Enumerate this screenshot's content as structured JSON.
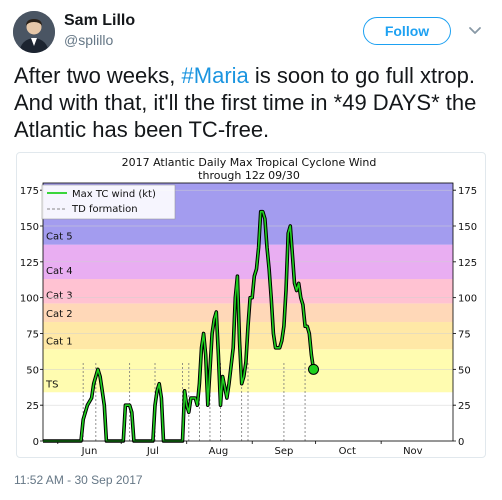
{
  "user": {
    "display_name": "Sam Lillo",
    "handle": "@splillo",
    "avatar_icon": "person-avatar-icon"
  },
  "follow_button": {
    "label": "Follow",
    "color": "#1da1f2"
  },
  "menu_icon": "chevron-down-icon",
  "tweet": {
    "text_before": "After two weeks, ",
    "hashtag": "#Maria",
    "text_after": " is soon to go full xtrop. And with that, it'll the first time in *49 DAYS* the Atlantic has been TC-free.",
    "hashtag_color": "#1b95e0"
  },
  "timestamp": "11:52 AM - 30 Sep 2017",
  "chart_data": {
    "type": "line",
    "title": "2017 Atlantic Daily Max Tropical Cyclone Wind",
    "subtitle": "through 12z 09/30",
    "ylim": [
      0,
      180
    ],
    "yticks": [
      0,
      25,
      50,
      75,
      100,
      125,
      150,
      175
    ],
    "x_start": "2017-05-25",
    "x_end": "2017-12-05",
    "xticks": [
      {
        "label": "Jun",
        "date": "2017-06-01"
      },
      {
        "label": "Jul",
        "date": "2017-07-01"
      },
      {
        "label": "Aug",
        "date": "2017-08-01"
      },
      {
        "label": "Sep",
        "date": "2017-09-01"
      },
      {
        "label": "Oct",
        "date": "2017-10-01"
      },
      {
        "label": "Nov",
        "date": "2017-11-01"
      }
    ],
    "categories": [
      {
        "label": "TS",
        "from": 34,
        "to": 64,
        "color": "#fffcb0"
      },
      {
        "label": "Cat 1",
        "from": 64,
        "to": 83,
        "color": "#ffe8a6"
      },
      {
        "label": "Cat 2",
        "from": 83,
        "to": 96,
        "color": "#ffd8b8"
      },
      {
        "label": "Cat 3",
        "from": 96,
        "to": 113,
        "color": "#ffc2d2"
      },
      {
        "label": "Cat 4",
        "from": 113,
        "to": 137,
        "color": "#e9aef2"
      },
      {
        "label": "Cat 5",
        "from": 137,
        "to": 180,
        "color": "#a39cef"
      }
    ],
    "legend": {
      "position": "top-left",
      "entries": [
        {
          "label": "Max TC wind (kt)",
          "style": "solid",
          "color": "#1fd11f"
        },
        {
          "label": "TD formation",
          "style": "dashed",
          "color": "#888888"
        }
      ]
    },
    "series": [
      {
        "name": "Max TC wind (kt)",
        "points": [
          [
            "2017-05-25",
            0
          ],
          [
            "2017-06-12",
            0
          ],
          [
            "2017-06-13",
            15
          ],
          [
            "2017-06-15",
            25
          ],
          [
            "2017-06-17",
            30
          ],
          [
            "2017-06-18",
            40
          ],
          [
            "2017-06-19",
            45
          ],
          [
            "2017-06-20",
            50
          ],
          [
            "2017-06-21",
            45
          ],
          [
            "2017-06-22",
            35
          ],
          [
            "2017-06-23",
            25
          ],
          [
            "2017-06-24",
            0
          ],
          [
            "2017-07-02",
            0
          ],
          [
            "2017-07-03",
            25
          ],
          [
            "2017-07-04",
            25
          ],
          [
            "2017-07-05",
            25
          ],
          [
            "2017-07-06",
            20
          ],
          [
            "2017-07-07",
            0
          ],
          [
            "2017-07-16",
            0
          ],
          [
            "2017-07-17",
            25
          ],
          [
            "2017-07-18",
            35
          ],
          [
            "2017-07-19",
            40
          ],
          [
            "2017-07-20",
            30
          ],
          [
            "2017-07-21",
            0
          ],
          [
            "2017-07-30",
            0
          ],
          [
            "2017-07-31",
            35
          ],
          [
            "2017-08-01",
            25
          ],
          [
            "2017-08-02",
            20
          ],
          [
            "2017-08-03",
            30
          ],
          [
            "2017-08-05",
            30
          ],
          [
            "2017-08-06",
            25
          ],
          [
            "2017-08-07",
            40
          ],
          [
            "2017-08-08",
            65
          ],
          [
            "2017-08-09",
            75
          ],
          [
            "2017-08-10",
            60
          ],
          [
            "2017-08-11",
            25
          ],
          [
            "2017-08-12",
            50
          ],
          [
            "2017-08-13",
            75
          ],
          [
            "2017-08-14",
            85
          ],
          [
            "2017-08-15",
            90
          ],
          [
            "2017-08-16",
            60
          ],
          [
            "2017-08-17",
            25
          ],
          [
            "2017-08-18",
            45
          ],
          [
            "2017-08-20",
            30
          ],
          [
            "2017-08-21",
            40
          ],
          [
            "2017-08-23",
            65
          ],
          [
            "2017-08-24",
            100
          ],
          [
            "2017-08-25",
            115
          ],
          [
            "2017-08-26",
            70
          ],
          [
            "2017-08-27",
            40
          ],
          [
            "2017-08-28",
            45
          ],
          [
            "2017-08-29",
            55
          ],
          [
            "2017-08-30",
            80
          ],
          [
            "2017-08-31",
            100
          ],
          [
            "2017-09-01",
            100
          ],
          [
            "2017-09-02",
            115
          ],
          [
            "2017-09-03",
            120
          ],
          [
            "2017-09-04",
            135
          ],
          [
            "2017-09-05",
            160
          ],
          [
            "2017-09-06",
            160
          ],
          [
            "2017-09-07",
            155
          ],
          [
            "2017-09-08",
            135
          ],
          [
            "2017-09-09",
            120
          ],
          [
            "2017-09-10",
            100
          ],
          [
            "2017-09-11",
            75
          ],
          [
            "2017-09-12",
            65
          ],
          [
            "2017-09-14",
            65
          ],
          [
            "2017-09-15",
            70
          ],
          [
            "2017-09-16",
            80
          ],
          [
            "2017-09-17",
            105
          ],
          [
            "2017-09-18",
            145
          ],
          [
            "2017-09-19",
            150
          ],
          [
            "2017-09-20",
            130
          ],
          [
            "2017-09-21",
            110
          ],
          [
            "2017-09-22",
            105
          ],
          [
            "2017-09-23",
            110
          ],
          [
            "2017-09-24",
            100
          ],
          [
            "2017-09-25",
            95
          ],
          [
            "2017-09-26",
            80
          ],
          [
            "2017-09-27",
            80
          ],
          [
            "2017-09-28",
            75
          ],
          [
            "2017-09-29",
            60
          ],
          [
            "2017-09-30",
            50
          ]
        ]
      }
    ],
    "endpoint": {
      "date": "2017-09-30",
      "value": 50
    },
    "td_formation_dates": [
      "2017-06-13",
      "2017-06-19",
      "2017-07-05",
      "2017-07-17",
      "2017-07-30",
      "2017-08-02",
      "2017-08-07",
      "2017-08-12",
      "2017-08-17",
      "2017-08-27",
      "2017-08-30",
      "2017-09-16",
      "2017-09-26"
    ]
  }
}
